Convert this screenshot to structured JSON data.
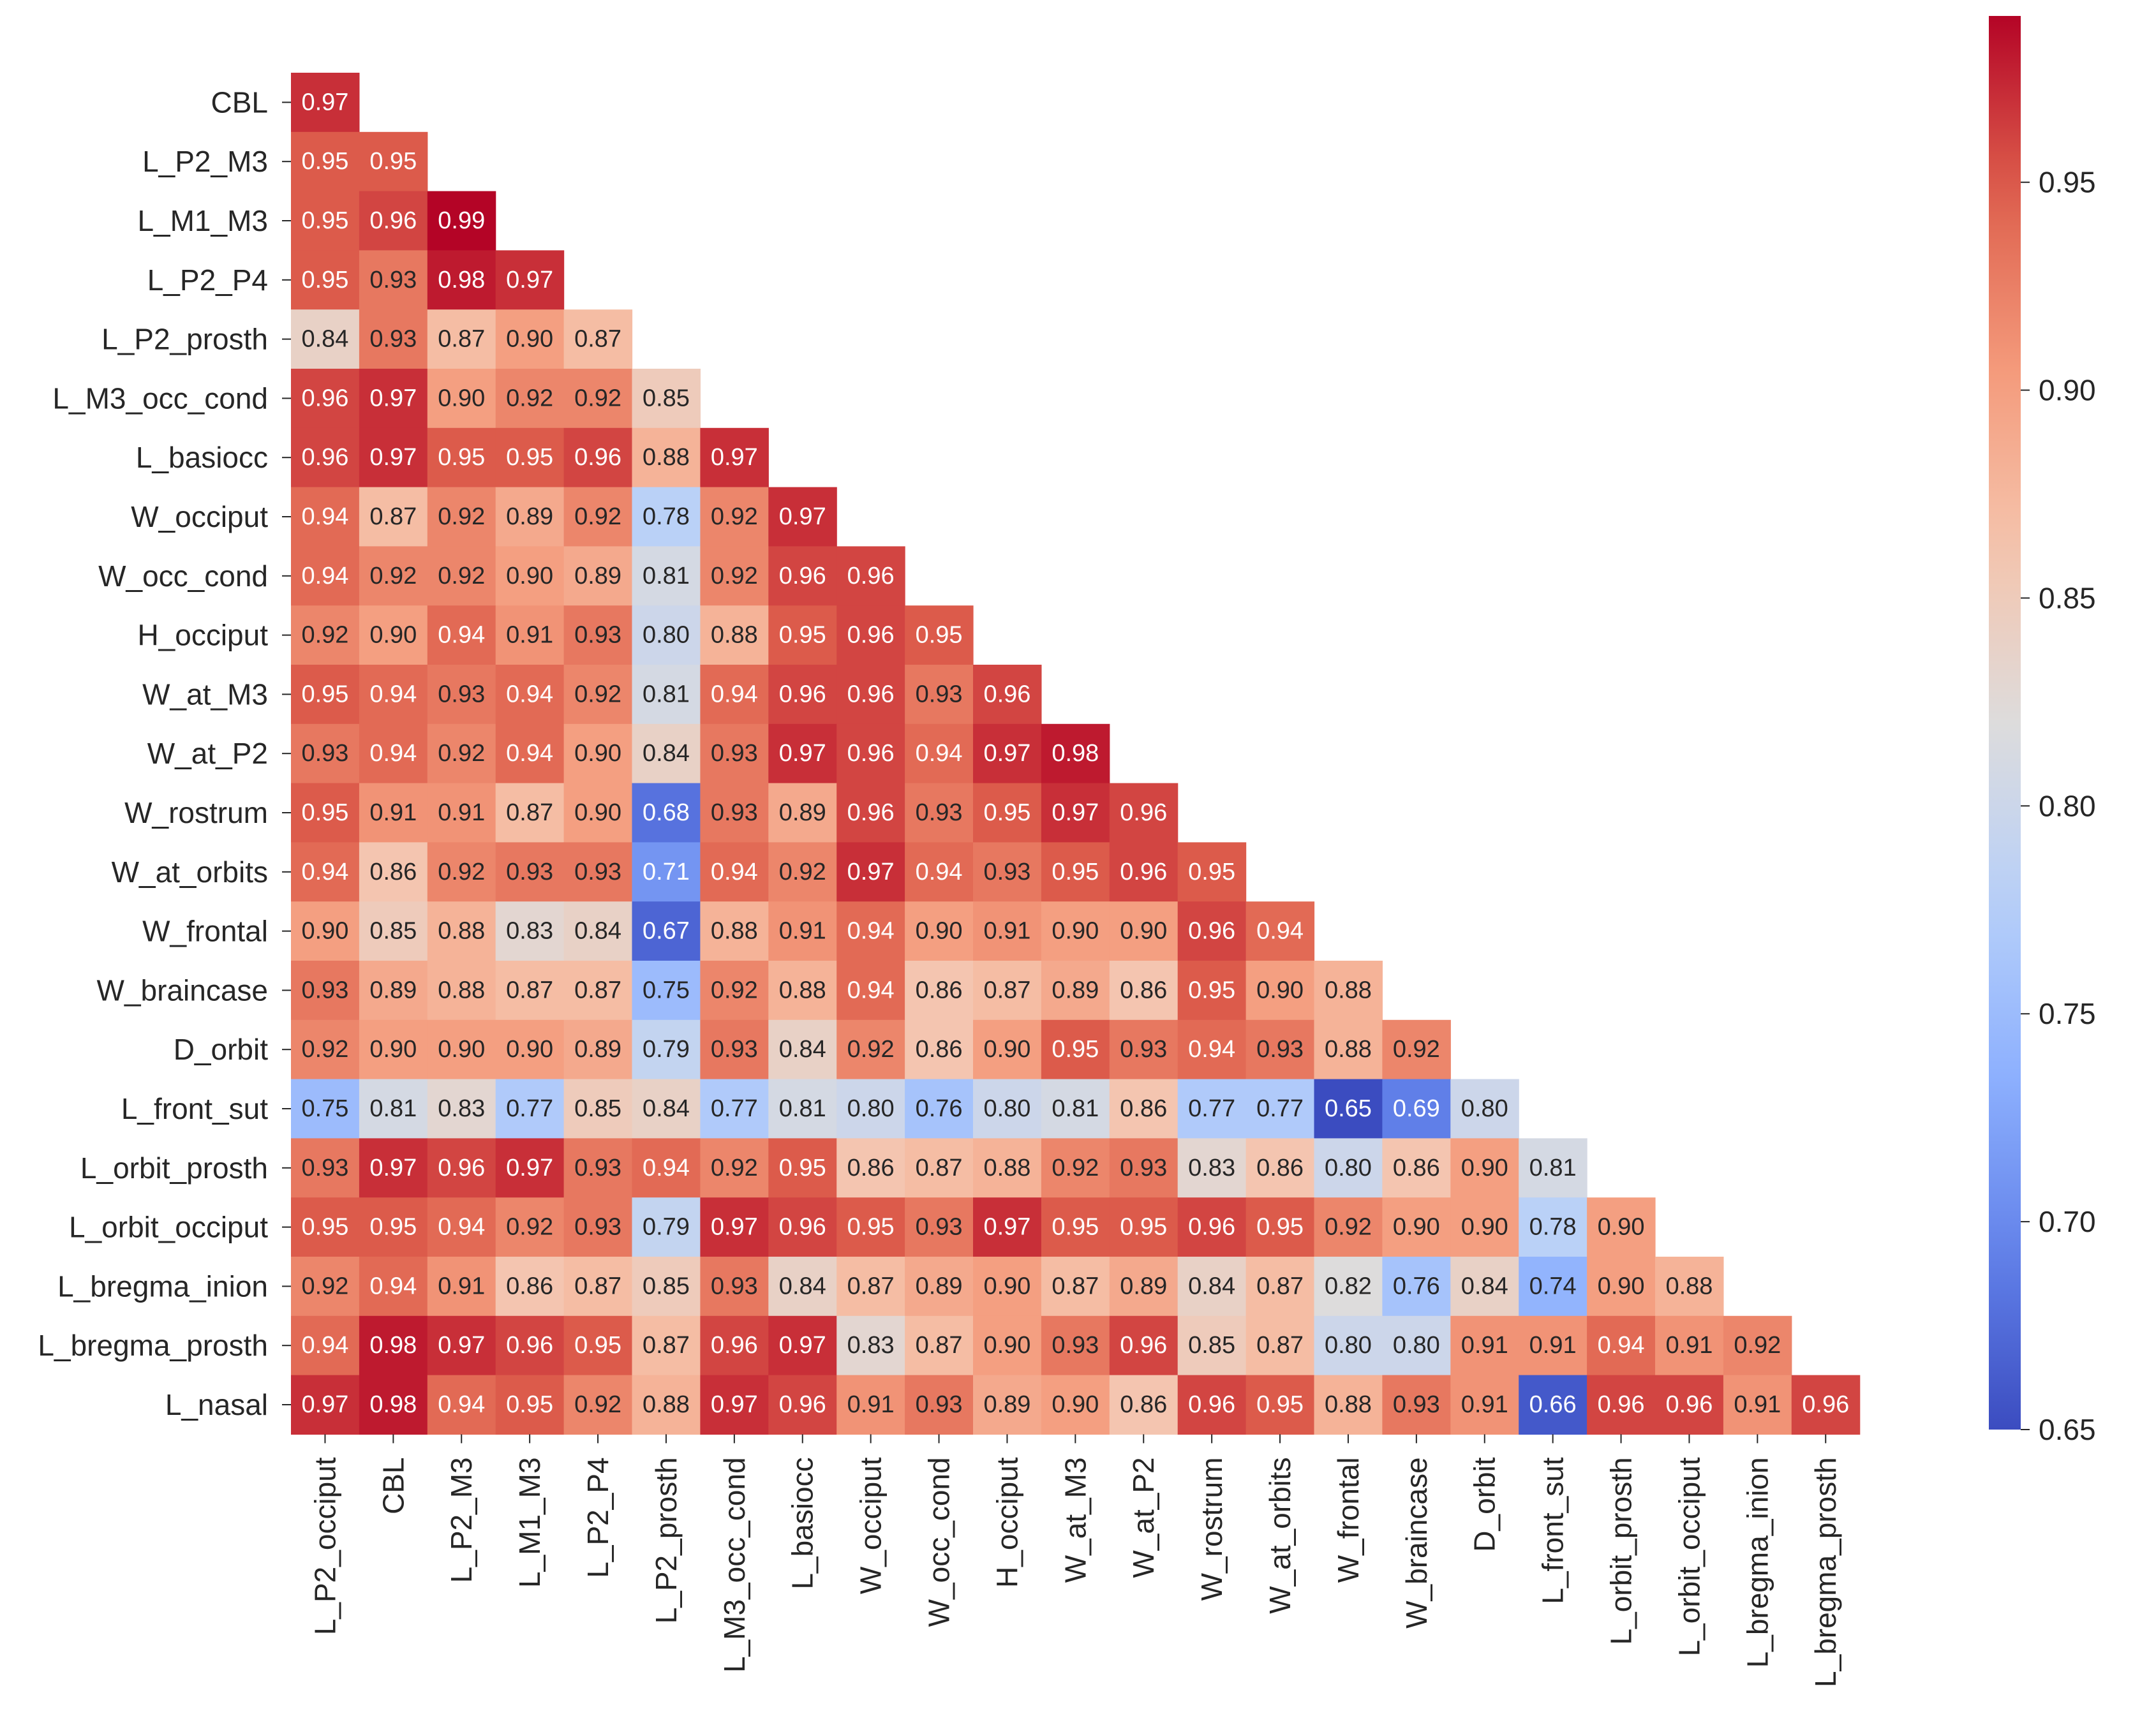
{
  "chart_data": {
    "type": "heatmap",
    "subtype": "lower-triangle correlation matrix",
    "row_labels": [
      "CBL",
      "L_P2_M3",
      "L_M1_M3",
      "L_P2_P4",
      "L_P2_prosth",
      "L_M3_occ_cond",
      "L_basiocc",
      "W_occiput",
      "W_occ_cond",
      "H_occiput",
      "W_at_M3",
      "W_at_P2",
      "W_rostrum",
      "W_at_orbits",
      "W_frontal",
      "W_braincase",
      "D_orbit",
      "L_front_sut",
      "L_orbit_prosth",
      "L_orbit_occiput",
      "L_bregma_inion",
      "L_bregma_prosth",
      "L_nasal"
    ],
    "col_labels": [
      "L_P2_occiput",
      "CBL",
      "L_P2_M3",
      "L_M1_M3",
      "L_P2_P4",
      "L_P2_prosth",
      "L_M3_occ_cond",
      "L_basiocc",
      "W_occiput",
      "W_occ_cond",
      "H_occiput",
      "W_at_M3",
      "W_at_P2",
      "W_rostrum",
      "W_at_orbits",
      "W_frontal",
      "W_braincase",
      "D_orbit",
      "L_front_sut",
      "L_orbit_prosth",
      "L_orbit_occiput",
      "L_bregma_inion",
      "L_bregma_prosth"
    ],
    "values": [
      [
        0.97
      ],
      [
        0.95,
        0.95
      ],
      [
        0.95,
        0.96,
        0.99
      ],
      [
        0.95,
        0.93,
        0.98,
        0.97
      ],
      [
        0.84,
        0.93,
        0.87,
        0.9,
        0.87
      ],
      [
        0.96,
        0.97,
        0.9,
        0.92,
        0.92,
        0.85
      ],
      [
        0.96,
        0.97,
        0.95,
        0.95,
        0.96,
        0.88,
        0.97
      ],
      [
        0.94,
        0.87,
        0.92,
        0.89,
        0.92,
        0.78,
        0.92,
        0.97
      ],
      [
        0.94,
        0.92,
        0.92,
        0.9,
        0.89,
        0.81,
        0.92,
        0.96,
        0.96
      ],
      [
        0.92,
        0.9,
        0.94,
        0.91,
        0.93,
        0.8,
        0.88,
        0.95,
        0.96,
        0.95
      ],
      [
        0.95,
        0.94,
        0.93,
        0.94,
        0.92,
        0.81,
        0.94,
        0.96,
        0.96,
        0.93,
        0.96
      ],
      [
        0.93,
        0.94,
        0.92,
        0.94,
        0.9,
        0.84,
        0.93,
        0.97,
        0.96,
        0.94,
        0.97,
        0.98
      ],
      [
        0.95,
        0.91,
        0.91,
        0.87,
        0.9,
        0.68,
        0.93,
        0.89,
        0.96,
        0.93,
        0.95,
        0.97,
        0.96
      ],
      [
        0.94,
        0.86,
        0.92,
        0.93,
        0.93,
        0.71,
        0.94,
        0.92,
        0.97,
        0.94,
        0.93,
        0.95,
        0.96,
        0.95
      ],
      [
        0.9,
        0.85,
        0.88,
        0.83,
        0.84,
        0.67,
        0.88,
        0.91,
        0.94,
        0.9,
        0.91,
        0.9,
        0.9,
        0.96,
        0.94
      ],
      [
        0.93,
        0.89,
        0.88,
        0.87,
        0.87,
        0.75,
        0.92,
        0.88,
        0.94,
        0.86,
        0.87,
        0.89,
        0.86,
        0.95,
        0.9,
        0.88
      ],
      [
        0.92,
        0.9,
        0.9,
        0.9,
        0.89,
        0.79,
        0.93,
        0.84,
        0.92,
        0.86,
        0.9,
        0.95,
        0.93,
        0.94,
        0.93,
        0.88,
        0.92
      ],
      [
        0.75,
        0.81,
        0.83,
        0.77,
        0.85,
        0.84,
        0.77,
        0.81,
        0.8,
        0.76,
        0.8,
        0.81,
        0.86,
        0.77,
        0.77,
        0.65,
        0.69,
        0.8
      ],
      [
        0.93,
        0.97,
        0.96,
        0.97,
        0.93,
        0.94,
        0.92,
        0.95,
        0.86,
        0.87,
        0.88,
        0.92,
        0.93,
        0.83,
        0.86,
        0.8,
        0.86,
        0.9,
        0.81
      ],
      [
        0.95,
        0.95,
        0.94,
        0.92,
        0.93,
        0.79,
        0.97,
        0.96,
        0.95,
        0.93,
        0.97,
        0.95,
        0.95,
        0.96,
        0.95,
        0.92,
        0.9,
        0.9,
        0.78,
        0.9
      ],
      [
        0.92,
        0.94,
        0.91,
        0.86,
        0.87,
        0.85,
        0.93,
        0.84,
        0.87,
        0.89,
        0.9,
        0.87,
        0.89,
        0.84,
        0.87,
        0.82,
        0.76,
        0.84,
        0.74,
        0.9,
        0.88
      ],
      [
        0.94,
        0.98,
        0.97,
        0.96,
        0.95,
        0.87,
        0.96,
        0.97,
        0.83,
        0.87,
        0.9,
        0.93,
        0.96,
        0.85,
        0.87,
        0.8,
        0.8,
        0.91,
        0.91,
        0.94,
        0.91,
        0.92
      ],
      [
        0.97,
        0.98,
        0.94,
        0.95,
        0.92,
        0.88,
        0.97,
        0.96,
        0.91,
        0.93,
        0.89,
        0.9,
        0.86,
        0.96,
        0.95,
        0.88,
        0.93,
        0.91,
        0.66,
        0.96,
        0.96,
        0.91,
        0.96
      ]
    ],
    "value_format": "2 decimals",
    "colormap": "coolwarm",
    "colorbar": {
      "range": [
        0.65,
        0.99
      ],
      "ticks": [
        0.65,
        0.7,
        0.75,
        0.8,
        0.85,
        0.9,
        0.95
      ],
      "tick_labels": [
        "0.65",
        "0.70",
        "0.75",
        "0.80",
        "0.85",
        "0.90",
        "0.95"
      ],
      "placement": "right"
    },
    "title": "",
    "xlabel": "",
    "ylabel": ""
  }
}
